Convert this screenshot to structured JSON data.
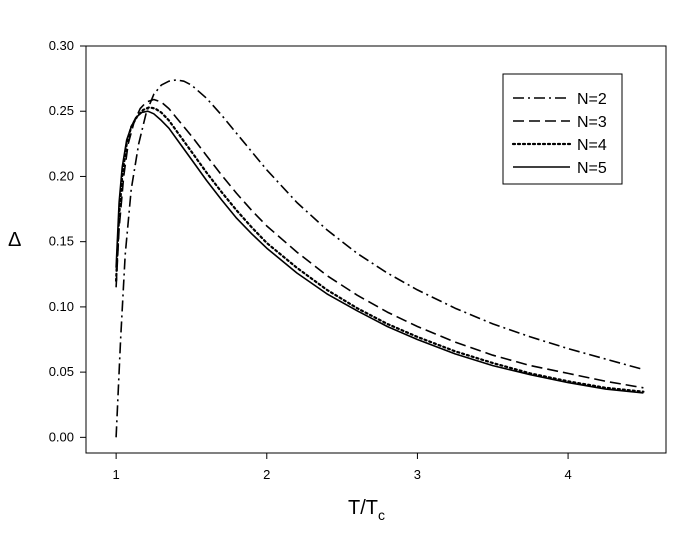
{
  "chart_data": {
    "type": "line",
    "title": "",
    "xlabel": {
      "base": "T/T",
      "sub": "c"
    },
    "ylabel": "Δ",
    "xlim": [
      0.8,
      4.65
    ],
    "ylim": [
      -0.012,
      0.3
    ],
    "xticks": [
      1,
      2,
      3,
      4
    ],
    "xtick_labels": [
      "1",
      "2",
      "3",
      "4"
    ],
    "yticks": [
      0.0,
      0.05,
      0.1,
      0.15,
      0.2,
      0.25,
      0.3
    ],
    "ytick_labels": [
      "0.00",
      "0.05",
      "0.10",
      "0.15",
      "0.20",
      "0.25",
      "0.30"
    ],
    "grid": false,
    "legend_position": "top-right",
    "series": [
      {
        "name": "N=2",
        "line_style": "dashdot",
        "color": "#000000",
        "x": [
          1.0,
          1.03,
          1.06,
          1.1,
          1.15,
          1.2,
          1.25,
          1.3,
          1.35,
          1.4,
          1.45,
          1.5,
          1.6,
          1.7,
          1.8,
          1.9,
          2.0,
          2.2,
          2.4,
          2.6,
          2.8,
          3.0,
          3.25,
          3.5,
          3.75,
          4.0,
          4.25,
          4.5
        ],
        "y": [
          0.0,
          0.075,
          0.14,
          0.19,
          0.225,
          0.249,
          0.263,
          0.27,
          0.273,
          0.274,
          0.273,
          0.27,
          0.26,
          0.247,
          0.233,
          0.219,
          0.205,
          0.18,
          0.159,
          0.141,
          0.126,
          0.113,
          0.099,
          0.087,
          0.077,
          0.068,
          0.06,
          0.052
        ]
      },
      {
        "name": "N=3",
        "line_style": "dashed",
        "color": "#000000",
        "x": [
          1.0,
          1.02,
          1.05,
          1.08,
          1.12,
          1.16,
          1.2,
          1.25,
          1.3,
          1.35,
          1.4,
          1.5,
          1.6,
          1.7,
          1.8,
          1.9,
          2.0,
          2.2,
          2.4,
          2.6,
          2.8,
          3.0,
          3.25,
          3.5,
          3.75,
          4.0,
          4.25,
          4.5
        ],
        "y": [
          0.115,
          0.16,
          0.2,
          0.225,
          0.242,
          0.252,
          0.257,
          0.259,
          0.257,
          0.252,
          0.245,
          0.231,
          0.216,
          0.201,
          0.187,
          0.174,
          0.162,
          0.142,
          0.124,
          0.109,
          0.096,
          0.085,
          0.073,
          0.063,
          0.055,
          0.049,
          0.043,
          0.038
        ]
      },
      {
        "name": "N=4",
        "line_style": "dotted",
        "color": "#000000",
        "x": [
          1.0,
          1.02,
          1.04,
          1.07,
          1.1,
          1.14,
          1.18,
          1.22,
          1.26,
          1.3,
          1.35,
          1.4,
          1.5,
          1.6,
          1.7,
          1.8,
          1.9,
          2.0,
          2.2,
          2.4,
          2.6,
          2.8,
          3.0,
          3.25,
          3.5,
          3.75,
          4.0,
          4.25,
          4.5
        ],
        "y": [
          0.12,
          0.17,
          0.2,
          0.225,
          0.238,
          0.246,
          0.251,
          0.253,
          0.252,
          0.249,
          0.243,
          0.235,
          0.219,
          0.203,
          0.188,
          0.174,
          0.161,
          0.149,
          0.13,
          0.113,
          0.099,
          0.087,
          0.077,
          0.066,
          0.057,
          0.049,
          0.043,
          0.038,
          0.035
        ]
      },
      {
        "name": "N=5",
        "line_style": "solid",
        "color": "#000000",
        "x": [
          1.0,
          1.02,
          1.04,
          1.07,
          1.1,
          1.13,
          1.17,
          1.21,
          1.25,
          1.3,
          1.35,
          1.4,
          1.5,
          1.6,
          1.7,
          1.8,
          1.9,
          2.0,
          2.2,
          2.4,
          2.6,
          2.8,
          3.0,
          3.25,
          3.5,
          3.75,
          4.0,
          4.25,
          4.5
        ],
        "y": [
          0.13,
          0.18,
          0.207,
          0.228,
          0.238,
          0.245,
          0.249,
          0.25,
          0.248,
          0.243,
          0.237,
          0.229,
          0.213,
          0.197,
          0.182,
          0.168,
          0.156,
          0.145,
          0.126,
          0.11,
          0.097,
          0.085,
          0.075,
          0.064,
          0.055,
          0.048,
          0.042,
          0.037,
          0.034
        ]
      }
    ]
  }
}
